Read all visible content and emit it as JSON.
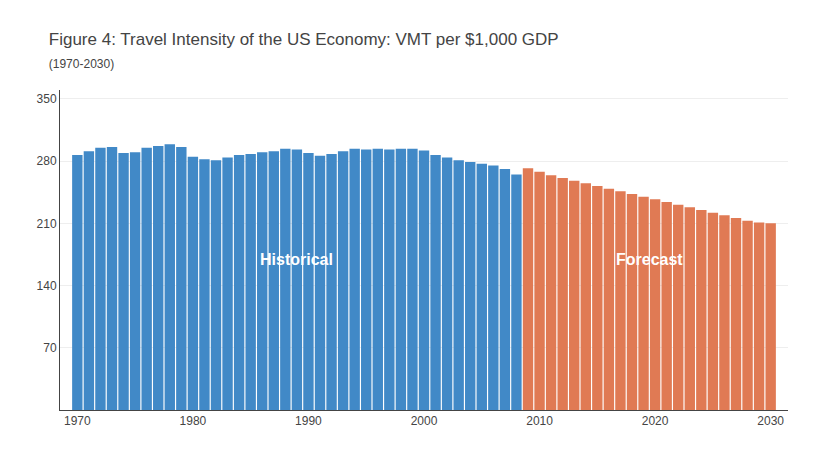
{
  "chart_data": {
    "type": "bar",
    "title": "Figure 4: Travel Intensity of the US Economy: VMT per $1,000 GDP",
    "subtitle": "(1970-2030)",
    "x": [
      1970,
      1971,
      1972,
      1973,
      1974,
      1975,
      1976,
      1977,
      1978,
      1979,
      1980,
      1981,
      1982,
      1983,
      1984,
      1985,
      1986,
      1987,
      1988,
      1989,
      1990,
      1991,
      1992,
      1993,
      1994,
      1995,
      1996,
      1997,
      1998,
      1999,
      2000,
      2001,
      2002,
      2003,
      2004,
      2005,
      2006,
      2007,
      2008,
      2009,
      2010,
      2011,
      2012,
      2013,
      2014,
      2015,
      2016,
      2017,
      2018,
      2019,
      2020,
      2021,
      2022,
      2023,
      2024,
      2025,
      2026,
      2027,
      2028,
      2029,
      2030
    ],
    "values": [
      287,
      291,
      295,
      296,
      289,
      290,
      295,
      297,
      299,
      296,
      285,
      282,
      281,
      284,
      287,
      288,
      290,
      291,
      294,
      293,
      289,
      286,
      288,
      291,
      294,
      293,
      294,
      293,
      294,
      294,
      292,
      287,
      284,
      281,
      279,
      277,
      275,
      271,
      265,
      272,
      268,
      264,
      261,
      258,
      255,
      252,
      249,
      246,
      243,
      240,
      237,
      234,
      231,
      228,
      225,
      222,
      219,
      216,
      213,
      211,
      210
    ],
    "colors": [
      "#4189C7",
      "#4189C7",
      "#4189C7",
      "#4189C7",
      "#4189C7",
      "#4189C7",
      "#4189C7",
      "#4189C7",
      "#4189C7",
      "#4189C7",
      "#4189C7",
      "#4189C7",
      "#4189C7",
      "#4189C7",
      "#4189C7",
      "#4189C7",
      "#4189C7",
      "#4189C7",
      "#4189C7",
      "#4189C7",
      "#4189C7",
      "#4189C7",
      "#4189C7",
      "#4189C7",
      "#4189C7",
      "#4189C7",
      "#4189C7",
      "#4189C7",
      "#4189C7",
      "#4189C7",
      "#4189C7",
      "#4189C7",
      "#4189C7",
      "#4189C7",
      "#4189C7",
      "#4189C7",
      "#4189C7",
      "#4189C7",
      "#4189C7",
      "#E07A54",
      "#E07A54",
      "#E07A54",
      "#E07A54",
      "#E07A54",
      "#E07A54",
      "#E07A54",
      "#E07A54",
      "#E07A54",
      "#E07A54",
      "#E07A54",
      "#E07A54",
      "#E07A54",
      "#E07A54",
      "#E07A54",
      "#E07A54",
      "#E07A54",
      "#E07A54",
      "#E07A54",
      "#E07A54",
      "#E07A54",
      "#E07A54"
    ],
    "annotations": [
      "Historical",
      "Forecast"
    ],
    "xlim": [
      1968.5,
      2031.5
    ],
    "xticks": [
      1970,
      1980,
      1990,
      2000,
      2010,
      2020,
      2030
    ],
    "ylim": [
      0,
      360
    ],
    "yticks": [
      70,
      140,
      210,
      280,
      350
    ],
    "grid": true
  }
}
